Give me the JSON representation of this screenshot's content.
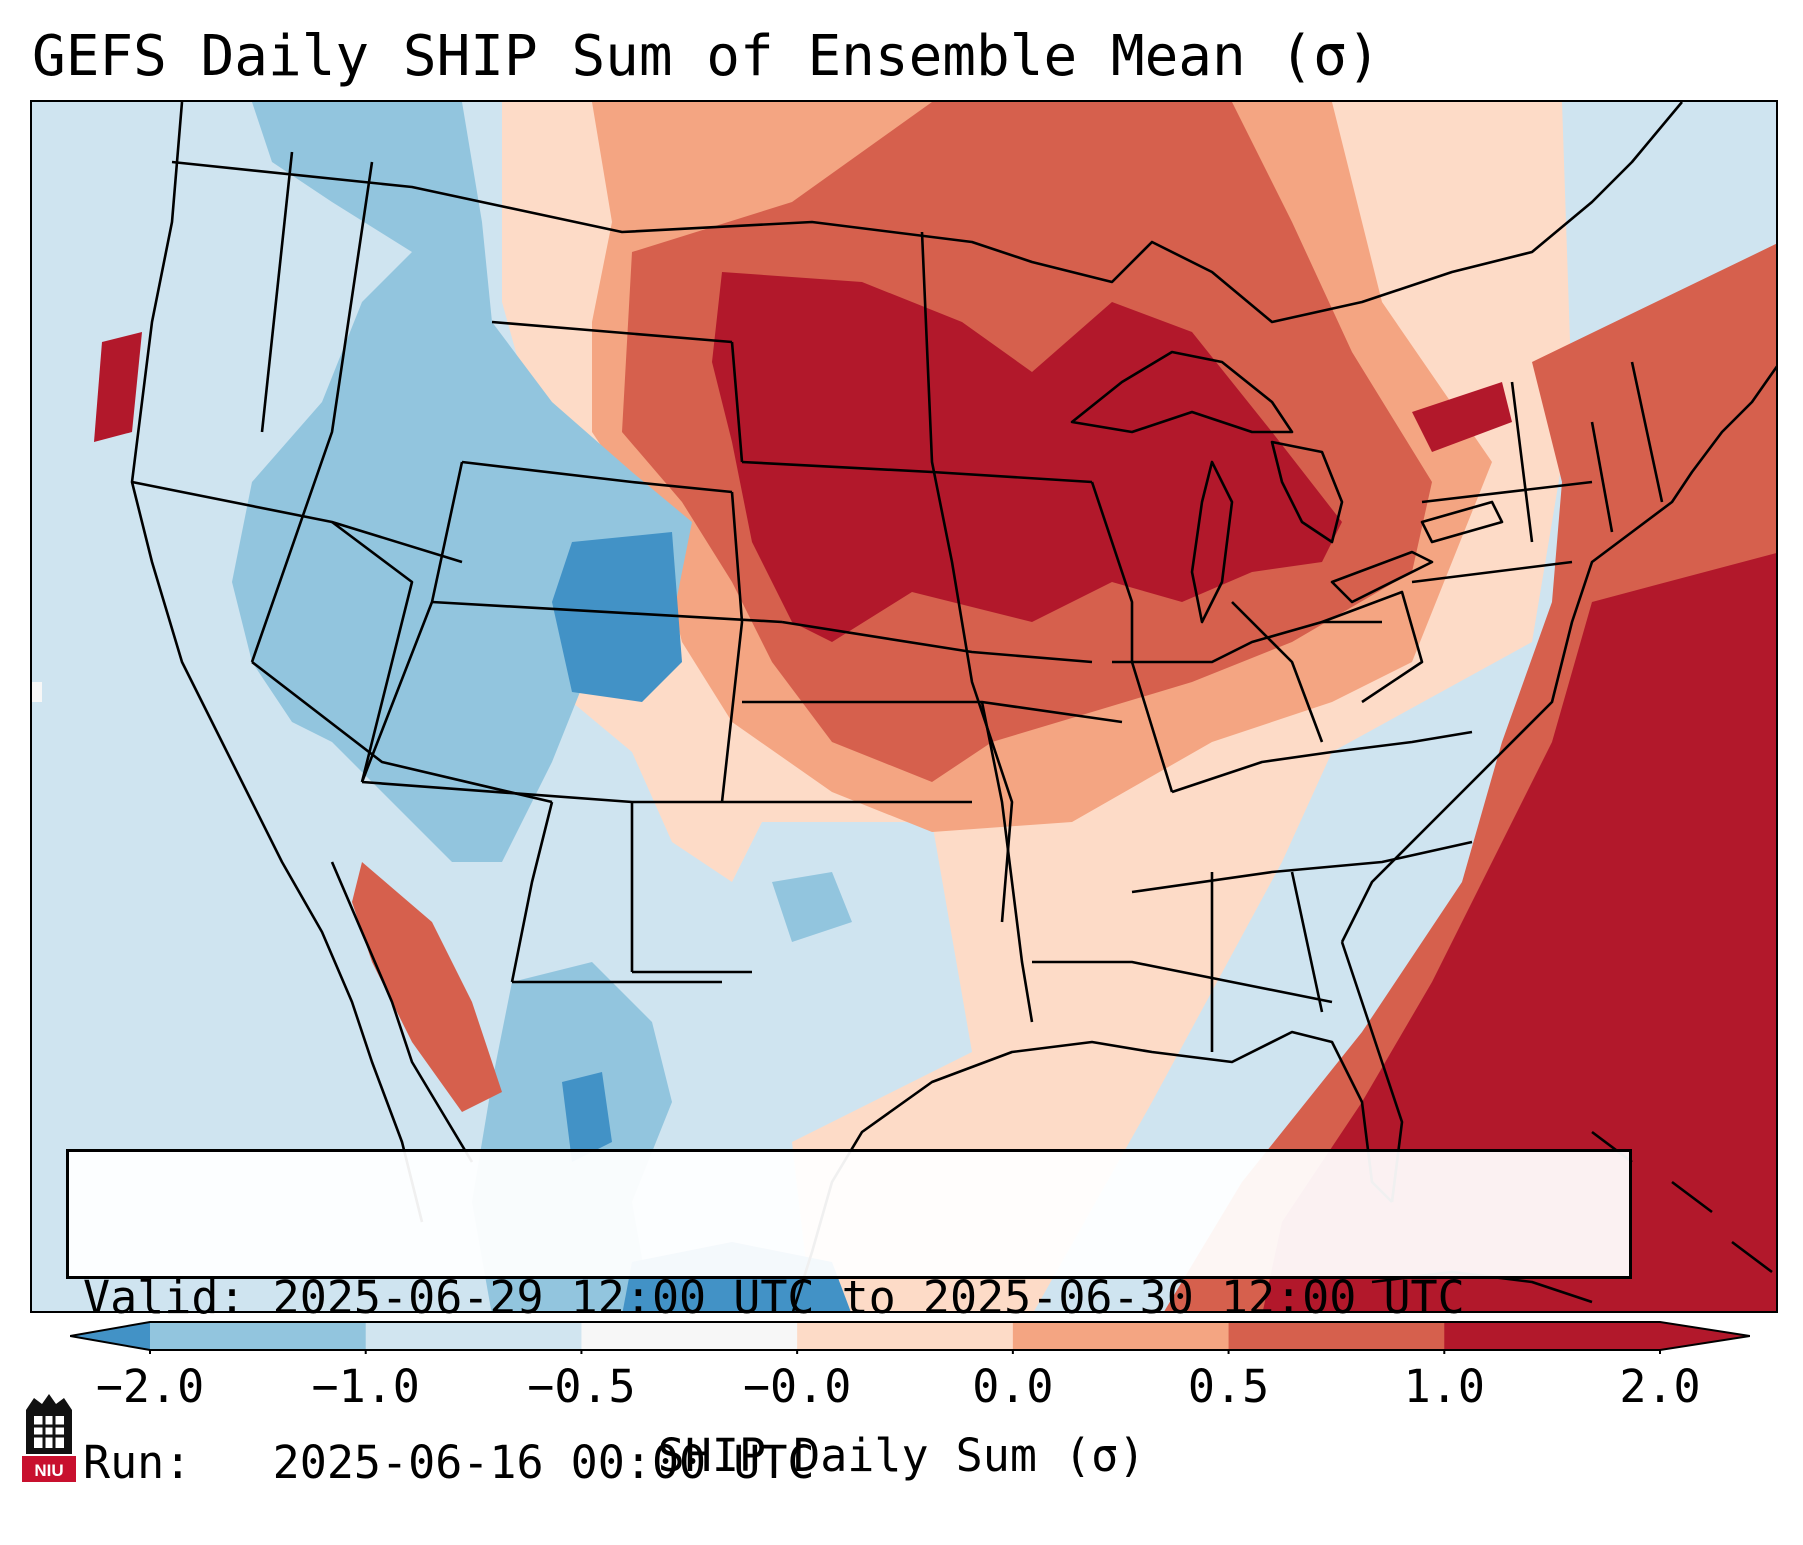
{
  "title": "GEFS Daily SHIP Sum of Ensemble Mean (σ)",
  "info": {
    "valid_label": "Valid:",
    "valid_value": "2025-06-29 12:00 UTC to 2025-06-30 12:00 UTC",
    "run_label": "Run:",
    "run_value": "2025-06-16 00:00 UTC"
  },
  "colorbar": {
    "label": "SHIP Daily Sum (σ)",
    "ticks": [
      "−2.0",
      "−1.0",
      "−0.5",
      "−0.0",
      "0.0",
      "0.5",
      "1.0",
      "2.0"
    ],
    "colors": [
      "#4292c6",
      "#92c5de",
      "#d1e5f0",
      "#f7f7f7",
      "#fddbc7",
      "#f4a582",
      "#d6604d",
      "#b2182b"
    ]
  },
  "logo": {
    "text": "NIU"
  },
  "map": {
    "region": "Contiguous United States",
    "palette": {
      "strong_negative": "#4292c6",
      "negative": "#92c5de",
      "weak_negative": "#d1e5f0",
      "weak_positive": "#fddbc7",
      "positive": "#f4a582",
      "strong_positive": "#d6604d",
      "very_strong_positive": "#b2182b"
    }
  }
}
